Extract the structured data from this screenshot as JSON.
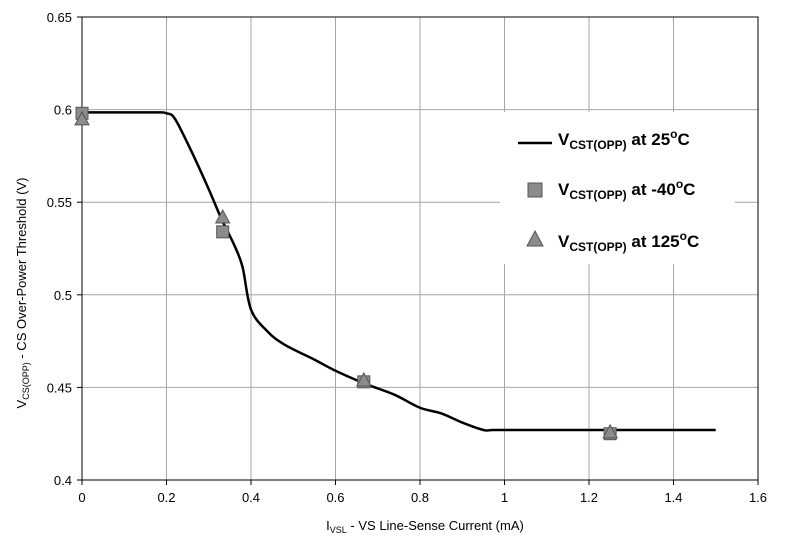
{
  "chart_data": {
    "type": "line",
    "title": "",
    "xlabel": {
      "main": "I",
      "sub": "VSL",
      "rest": " - VS Line-Sense Current (mA)"
    },
    "ylabel": {
      "main": "V",
      "sub": "CS(OPP)",
      "rest": " - CS Over-Power Threshold (V)"
    },
    "xlim": [
      0,
      1.6
    ],
    "ylim": [
      0.4,
      0.65
    ],
    "x_ticks": [
      "0",
      "0.2",
      "0.4",
      "0.6",
      "0.8",
      "1",
      "1.2",
      "1.4",
      "1.6"
    ],
    "y_ticks": [
      "0.4",
      "0.45",
      "0.5",
      "0.55",
      "0.6",
      "0.65"
    ],
    "grid": true,
    "legend_position": "right",
    "series": [
      {
        "name": "VCST(OPP) at 25°C",
        "legend": {
          "main": "V",
          "sub": "CST(OPP)",
          "mid": " at 25",
          "sup": "o",
          "end": "C"
        },
        "style": "line",
        "color": "#000000",
        "x": [
          0,
          0.1,
          0.18,
          0.2,
          0.22,
          0.26,
          0.3,
          0.33,
          0.36,
          0.38,
          0.4,
          0.44,
          0.48,
          0.55,
          0.6,
          0.67,
          0.74,
          0.8,
          0.85,
          0.9,
          0.95,
          0.97,
          1.0,
          1.2,
          1.4,
          1.5
        ],
        "y": [
          0.5985,
          0.5985,
          0.5985,
          0.598,
          0.595,
          0.577,
          0.557,
          0.541,
          0.527,
          0.515,
          0.492,
          0.48,
          0.473,
          0.465,
          0.459,
          0.452,
          0.446,
          0.439,
          0.436,
          0.431,
          0.427,
          0.427,
          0.427,
          0.427,
          0.427,
          0.427
        ]
      },
      {
        "name": "VCST(OPP) at -40°C",
        "legend": {
          "main": "V",
          "sub": "CST(OPP)",
          "mid": " at -40",
          "sup": "o",
          "end": "C"
        },
        "style": "square",
        "color": "#8c8c8c",
        "x": [
          0,
          0.333,
          0.667,
          1.25
        ],
        "y": [
          0.598,
          0.534,
          0.453,
          0.425
        ]
      },
      {
        "name": "VCST(OPP) at 125°C",
        "legend": {
          "main": "V",
          "sub": "CST(OPP)",
          "mid": " at 125",
          "sup": "o",
          "end": "C"
        },
        "style": "triangle",
        "color": "#8c8c8c",
        "x": [
          0,
          0.333,
          0.667,
          1.25
        ],
        "y": [
          0.595,
          0.542,
          0.454,
          0.426
        ]
      }
    ]
  }
}
